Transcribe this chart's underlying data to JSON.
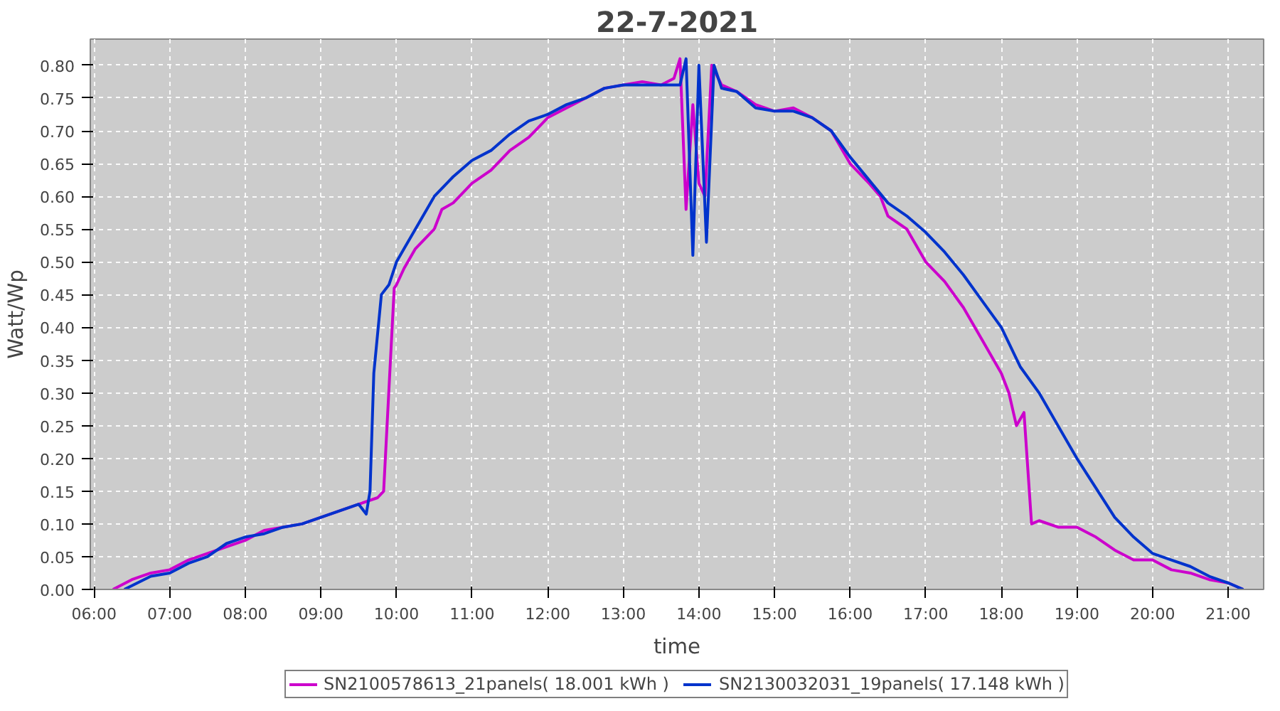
{
  "chart_data": {
    "type": "line",
    "title": "22-7-2021",
    "xlabel": "time",
    "ylabel": "Watt/Wp",
    "xlim": [
      5.95,
      21.47
    ],
    "ylim": [
      0,
      0.84
    ],
    "xticks": [
      {
        "value": 6,
        "label": "06:00"
      },
      {
        "value": 7,
        "label": "07:00"
      },
      {
        "value": 8,
        "label": "08:00"
      },
      {
        "value": 9,
        "label": "09:00"
      },
      {
        "value": 10,
        "label": "10:00"
      },
      {
        "value": 11,
        "label": "11:00"
      },
      {
        "value": 12,
        "label": "12:00"
      },
      {
        "value": 13,
        "label": "13:00"
      },
      {
        "value": 14,
        "label": "14:00"
      },
      {
        "value": 15,
        "label": "15:00"
      },
      {
        "value": 16,
        "label": "16:00"
      },
      {
        "value": 17,
        "label": "17:00"
      },
      {
        "value": 18,
        "label": "18:00"
      },
      {
        "value": 19,
        "label": "19:00"
      },
      {
        "value": 20,
        "label": "20:00"
      },
      {
        "value": 21,
        "label": "21:00"
      }
    ],
    "yticks": [
      {
        "value": 0,
        "label": "0.00"
      },
      {
        "value": 0.05,
        "label": "0.05"
      },
      {
        "value": 0.1,
        "label": "0.10"
      },
      {
        "value": 0.15,
        "label": "0.15"
      },
      {
        "value": 0.2,
        "label": "0.20"
      },
      {
        "value": 0.25,
        "label": "0.25"
      },
      {
        "value": 0.3,
        "label": "0.30"
      },
      {
        "value": 0.35,
        "label": "0.35"
      },
      {
        "value": 0.4,
        "label": "0.40"
      },
      {
        "value": 0.45,
        "label": "0.45"
      },
      {
        "value": 0.5,
        "label": "0.50"
      },
      {
        "value": 0.55,
        "label": "0.55"
      },
      {
        "value": 0.6,
        "label": "0.60"
      },
      {
        "value": 0.65,
        "label": "0.65"
      },
      {
        "value": 0.7,
        "label": "0.70"
      },
      {
        "value": 0.75,
        "label": "0.75"
      },
      {
        "value": 0.8,
        "label": "0.80"
      }
    ],
    "grid": true,
    "legend": "bottom",
    "line_style": "solid",
    "series": [
      {
        "name": "SN2100578613_21panels( 18.001 kWh )",
        "color": "#cc00cc",
        "x": [
          6.25,
          6.5,
          6.75,
          7.0,
          7.25,
          7.5,
          7.75,
          8.0,
          8.25,
          8.5,
          8.75,
          9.0,
          9.25,
          9.5,
          9.75,
          9.83,
          9.92,
          9.97,
          10.0,
          10.1,
          10.25,
          10.5,
          10.6,
          10.75,
          11.0,
          11.25,
          11.5,
          11.75,
          12.0,
          12.25,
          12.5,
          12.75,
          13.0,
          13.25,
          13.5,
          13.67,
          13.75,
          13.83,
          13.92,
          14.0,
          14.08,
          14.17,
          14.3,
          14.5,
          14.75,
          15.0,
          15.25,
          15.5,
          15.75,
          16.0,
          16.25,
          16.4,
          16.5,
          16.75,
          17.0,
          17.25,
          17.5,
          17.75,
          18.0,
          18.1,
          18.2,
          18.3,
          18.4,
          18.5,
          18.75,
          19.0,
          19.25,
          19.5,
          19.75,
          20.0,
          20.25,
          20.5,
          20.75,
          21.0,
          21.2
        ],
        "values": [
          0.0,
          0.015,
          0.025,
          0.03,
          0.045,
          0.055,
          0.065,
          0.075,
          0.09,
          0.095,
          0.1,
          0.11,
          0.12,
          0.13,
          0.14,
          0.15,
          0.35,
          0.46,
          0.465,
          0.49,
          0.52,
          0.55,
          0.58,
          0.59,
          0.62,
          0.64,
          0.67,
          0.69,
          0.72,
          0.735,
          0.75,
          0.765,
          0.77,
          0.775,
          0.77,
          0.78,
          0.81,
          0.58,
          0.74,
          0.62,
          0.6,
          0.8,
          0.77,
          0.76,
          0.74,
          0.73,
          0.735,
          0.72,
          0.7,
          0.65,
          0.62,
          0.6,
          0.57,
          0.55,
          0.5,
          0.47,
          0.43,
          0.38,
          0.33,
          0.3,
          0.25,
          0.27,
          0.1,
          0.105,
          0.095,
          0.095,
          0.08,
          0.06,
          0.045,
          0.045,
          0.03,
          0.025,
          0.015,
          0.01,
          0.0
        ]
      },
      {
        "name": "SN2130032031_19panels( 17.148 kWh )",
        "color": "#0033cc",
        "x": [
          6.4,
          6.75,
          7.0,
          7.25,
          7.5,
          7.75,
          8.0,
          8.25,
          8.5,
          8.75,
          9.0,
          9.25,
          9.5,
          9.6,
          9.65,
          9.7,
          9.8,
          9.9,
          10.0,
          10.1,
          10.25,
          10.5,
          10.75,
          11.0,
          11.25,
          11.5,
          11.75,
          12.0,
          12.25,
          12.5,
          12.75,
          13.0,
          13.25,
          13.5,
          13.75,
          13.83,
          13.92,
          14.0,
          14.1,
          14.2,
          14.3,
          14.5,
          14.75,
          15.0,
          15.25,
          15.5,
          15.75,
          16.0,
          16.25,
          16.5,
          16.75,
          17.0,
          17.25,
          17.5,
          17.75,
          18.0,
          18.25,
          18.5,
          18.75,
          19.0,
          19.25,
          19.5,
          19.75,
          20.0,
          20.25,
          20.5,
          20.75,
          21.0,
          21.2
        ],
        "values": [
          0.0,
          0.02,
          0.025,
          0.04,
          0.05,
          0.07,
          0.08,
          0.085,
          0.095,
          0.1,
          0.11,
          0.12,
          0.13,
          0.115,
          0.15,
          0.33,
          0.45,
          0.465,
          0.5,
          0.52,
          0.55,
          0.6,
          0.63,
          0.655,
          0.67,
          0.695,
          0.715,
          0.725,
          0.74,
          0.75,
          0.765,
          0.77,
          0.77,
          0.77,
          0.77,
          0.81,
          0.51,
          0.8,
          0.53,
          0.8,
          0.765,
          0.76,
          0.735,
          0.73,
          0.73,
          0.72,
          0.7,
          0.66,
          0.625,
          0.59,
          0.57,
          0.545,
          0.515,
          0.48,
          0.44,
          0.4,
          0.34,
          0.3,
          0.25,
          0.2,
          0.155,
          0.11,
          0.08,
          0.055,
          0.045,
          0.035,
          0.02,
          0.01,
          0.0
        ]
      }
    ]
  }
}
